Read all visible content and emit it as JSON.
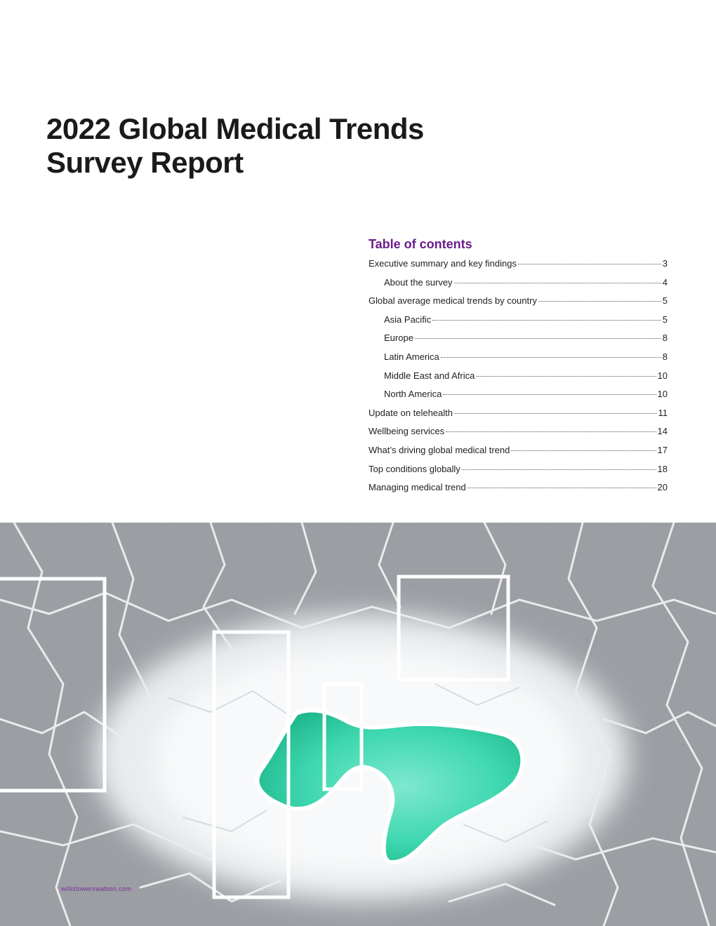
{
  "report": {
    "title_line1": "2022 Global Medical Trends",
    "title_line2": "Survey Report"
  },
  "toc": {
    "heading": "Table of contents",
    "items": [
      {
        "label": "Executive summary and key findings",
        "page": "3",
        "level": 1
      },
      {
        "label": "About the survey",
        "page": "4",
        "level": 2
      },
      {
        "label": "Global average medical trends by country",
        "page": "5",
        "level": 1
      },
      {
        "label": "Asia Pacific",
        "page": "5",
        "level": 2
      },
      {
        "label": "Europe",
        "page": "8",
        "level": 2
      },
      {
        "label": "Latin America",
        "page": "8",
        "level": 2
      },
      {
        "label": "Middle East and Africa",
        "page": "10",
        "level": 2
      },
      {
        "label": "North America",
        "page": "10",
        "level": 2
      },
      {
        "label": "Update on telehealth",
        "page": "11",
        "level": 1
      },
      {
        "label": "Wellbeing services",
        "page": "14",
        "level": 1
      },
      {
        "label": "What’s driving global medical trend",
        "page": "17",
        "level": 1
      },
      {
        "label": "Top conditions globally",
        "page": "18",
        "level": 1
      },
      {
        "label": "Managing medical trend",
        "page": "20",
        "level": 1
      }
    ]
  },
  "footer": {
    "url": "willistowerswatson.com"
  },
  "colors": {
    "accent": "#6a1c8c",
    "title": "#1a1a1a",
    "water": "#3fd8b0"
  }
}
